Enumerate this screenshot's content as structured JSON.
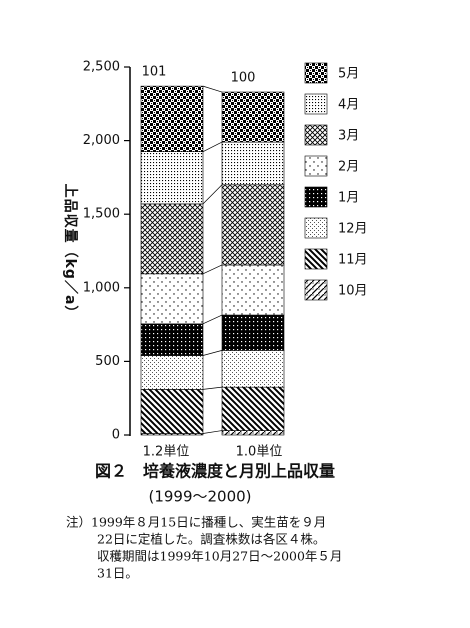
{
  "chart_data": {
    "type": "stacked_bar",
    "title": "図２　培養液濃度と月別上品収量",
    "subtitle": "(1999～2000)",
    "y_label": "上品収量（kg／a）",
    "categories": [
      "1.2単位",
      "1.0単位"
    ],
    "annotations": [
      "101",
      "100"
    ],
    "series": [
      {
        "name": "10月",
        "color": "#000000",
        "values": [
          10,
          30
        ]
      },
      {
        "name": "11月",
        "color": "#000000",
        "values": [
          300,
          295
        ]
      },
      {
        "name": "12月",
        "color": "#000000",
        "values": [
          230,
          250
        ]
      },
      {
        "name": "1月",
        "color": "#000000",
        "values": [
          215,
          240
        ]
      },
      {
        "name": "2月",
        "color": "#000000",
        "values": [
          340,
          340
        ]
      },
      {
        "name": "3月",
        "color": "#000000",
        "values": [
          475,
          545
        ]
      },
      {
        "name": "4月",
        "color": "#000000",
        "values": [
          355,
          290
        ]
      },
      {
        "name": "5月",
        "color": "#000000",
        "values": [
          445,
          340
        ]
      }
    ],
    "ylim": [
      0,
      2500
    ],
    "yticks": [
      0,
      500,
      {
        "value": 1000,
        "label": "1,000"
      },
      {
        "value": 1500,
        "label": "1,500"
      },
      {
        "value": 2000,
        "label": "2,000"
      },
      {
        "value": 2500,
        "label": "2,500"
      }
    ],
    "notes": [
      "注）1999年８月15日に播種し、実生苗を９月",
      "22日に定植した。調査株数は各区４株。",
      "収穫期間は1999年10月27日～2000年５月",
      "31日。"
    ]
  }
}
